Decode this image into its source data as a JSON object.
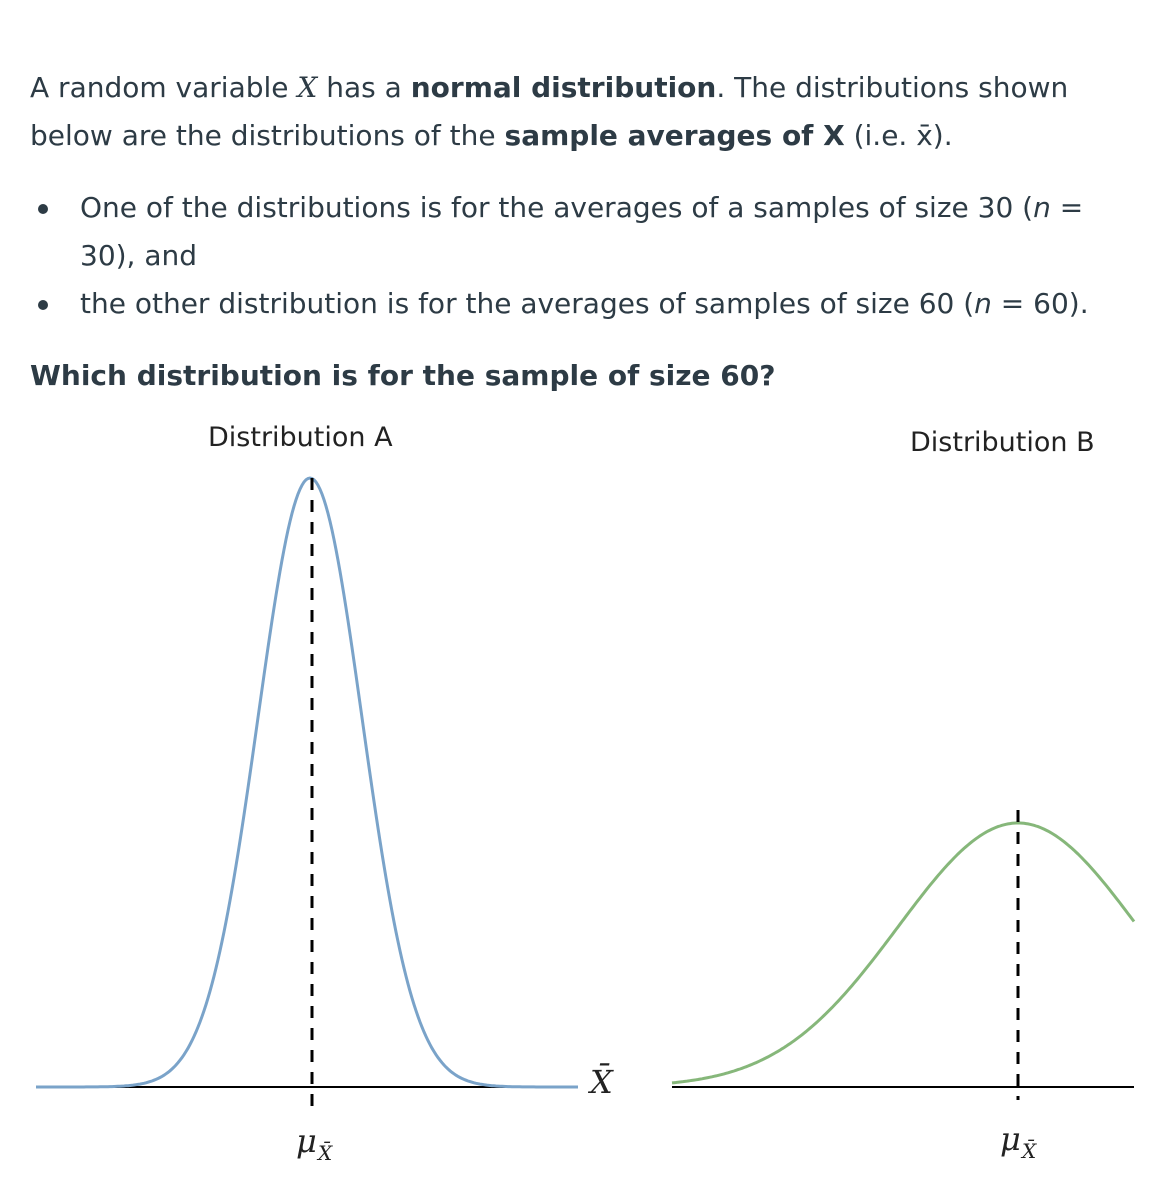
{
  "intro": {
    "p1": "A random variable ",
    "var_x": "X",
    "p2": " has a ",
    "bold1": "normal distribution",
    "p3": ". The distributions shown below are the distributions of the ",
    "bold2": "sample averages of X",
    "p4": " (i.e. x̄)."
  },
  "bullets": [
    {
      "a": "One of the distributions is for the averages of a samples of size 30 (",
      "n": "n",
      "b": " = 30), and"
    },
    {
      "a": "the other distribution is for the averages of samples of size 60 (",
      "n": "n",
      "b": " = 60)."
    }
  ],
  "question": "Which distribution is for the sample of size 60?",
  "diagram": {
    "dist_a": {
      "title": "Distribution A",
      "mean_label": "μ",
      "mean_sub": "X̄",
      "color": "#7aa3c9"
    },
    "dist_b": {
      "title": "Distribution B",
      "mean_label": "μ",
      "mean_sub": "X̄",
      "color": "#86b77a"
    },
    "axis_label": "X̄",
    "axis_color": "#000000"
  }
}
